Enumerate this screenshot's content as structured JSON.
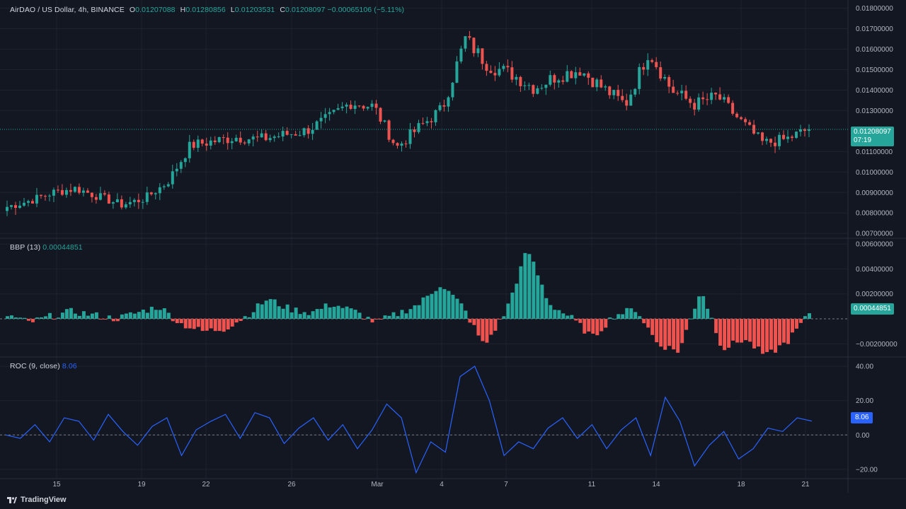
{
  "colors": {
    "background": "#131722",
    "grid": "#1e222d",
    "up": "#26a69a",
    "down": "#ef5350",
    "roc_line": "#2962ff",
    "axis_text": "#b2b5be"
  },
  "main_legend": {
    "symbol": "AirDAO / US Dollar, 4h, BINANCE",
    "o_label": "O",
    "o_value": "0.01207088",
    "h_label": "H",
    "h_value": "0.01280856",
    "l_label": "L",
    "l_value": "0.01203531",
    "c_label": "C",
    "c_value": "0.01208097",
    "change": "−0.00065106 (−5.11%)"
  },
  "bbp_legend": {
    "label": "BBP (13)",
    "value": "0.00044851"
  },
  "roc_legend": {
    "label": "ROC (9, close)",
    "value": "8.06"
  },
  "price_tag": {
    "value": "0.01208097",
    "countdown": "07:19"
  },
  "bbp_tag": "0.00044851",
  "roc_tag": "8.06",
  "price_axis_labels": [
    "0.01800000",
    "0.01700000",
    "0.01600000",
    "0.01500000",
    "0.01400000",
    "0.01300000",
    "0.01100000",
    "0.01000000",
    "0.00900000",
    "0.00800000",
    "0.00700000"
  ],
  "bbp_axis_labels": [
    "0.00600000",
    "0.00400000",
    "0.00200000",
    "−0.00200000"
  ],
  "roc_axis_labels": [
    "40.00",
    "20.00",
    "0.00",
    "−20.00"
  ],
  "time_axis_labels": [
    "15",
    "19",
    "22",
    "26",
    "Mar",
    "4",
    "7",
    "11",
    "14",
    "18",
    "21"
  ],
  "brand": "TradingView",
  "chart_data": [
    {
      "type": "candlestick",
      "title": "AirDAO / US Dollar, 4h, BINANCE",
      "ylim": [
        0.0068,
        0.0184
      ],
      "x": [
        "15",
        "19",
        "22",
        "26",
        "Mar",
        "4",
        "7",
        "11",
        "14",
        "18",
        "21"
      ],
      "close_anchors": [
        0.0083,
        0.0086,
        0.009,
        0.0092,
        0.0088,
        0.0084,
        0.0087,
        0.0095,
        0.0113,
        0.0115,
        0.0117,
        0.0116,
        0.0118,
        0.012,
        0.0126,
        0.0134,
        0.0132,
        0.0112,
        0.0122,
        0.0131,
        0.0165,
        0.0152,
        0.0148,
        0.0141,
        0.0147,
        0.015,
        0.0141,
        0.0133,
        0.0159,
        0.014,
        0.0133,
        0.0137,
        0.0125,
        0.0114,
        0.0116,
        0.0121
      ],
      "last_close": 0.01208097
    },
    {
      "type": "bar",
      "title": "BBP (13)",
      "ylim": [
        -0.003,
        0.0064
      ],
      "values": [
        0.0003,
        -0.0003,
        0.0002,
        0.0006,
        0.0003,
        0.0,
        0.0005,
        0.001,
        -0.0004,
        -0.001,
        -0.0008,
        0.0002,
        0.0016,
        0.0008,
        0.0005,
        0.0012,
        0.0006,
        -0.0003,
        0.0004,
        0.0012,
        0.0028,
        0.001,
        -0.0022,
        0.0006,
        0.0056,
        0.0012,
        0.0001,
        -0.0015,
        0.0003,
        0.0008,
        -0.002,
        -0.0026,
        0.0024,
        -0.0024,
        -0.0016,
        -0.003,
        -0.0018,
        0.0004
      ],
      "last_value": 0.00044851
    },
    {
      "type": "line",
      "title": "ROC (9, close)",
      "ylim": [
        -25,
        45
      ],
      "values": [
        0,
        -2,
        6,
        -4,
        10,
        8,
        -3,
        12,
        2,
        -6,
        5,
        10,
        -12,
        3,
        8,
        12,
        -2,
        13,
        10,
        -5,
        4,
        10,
        -3,
        6,
        -8,
        3,
        18,
        10,
        -22,
        -4,
        -10,
        34,
        40,
        20,
        -12,
        -4,
        -8,
        4,
        10,
        -2,
        6,
        -8,
        3,
        10,
        -12,
        22,
        8,
        -18,
        -6,
        2,
        -14,
        -8,
        4,
        2,
        10,
        8.06
      ]
    }
  ]
}
